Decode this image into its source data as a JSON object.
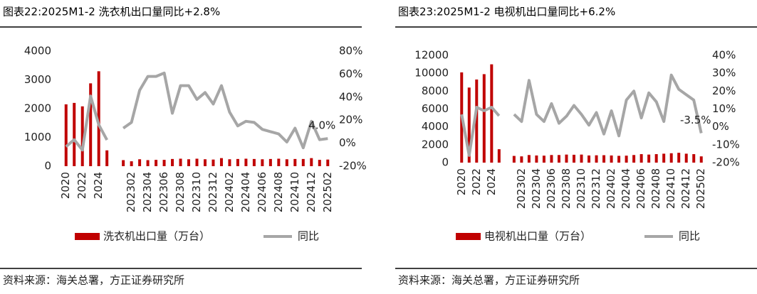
{
  "chart_data": [
    {
      "type": "combo",
      "title": "图表22:2025M1-2 洗衣机出口量同比+2.8%",
      "source": "资料来源：海关总署，方正证券研究所",
      "categories": [
        "2020",
        null,
        "2022",
        null,
        "2024",
        null,
        null,
        null,
        "202302",
        null,
        "202304",
        null,
        "202306",
        null,
        "202308",
        null,
        "202310",
        null,
        "202312",
        null,
        "202402",
        null,
        "202404",
        null,
        "202406",
        null,
        "202408",
        null,
        "202410",
        null,
        "202412",
        null,
        "202502"
      ],
      "series": [
        {
          "name": "洗衣机出口量（万台）",
          "type": "bar",
          "color": "#c00000",
          "values": [
            2150,
            2200,
            2080,
            2880,
            3300,
            550,
            null,
            210,
            170,
            240,
            210,
            220,
            220,
            250,
            260,
            240,
            260,
            240,
            230,
            280,
            240,
            250,
            260,
            250,
            240,
            250,
            260,
            240,
            250,
            250,
            280,
            220,
            230
          ]
        },
        {
          "name": "同比",
          "type": "line",
          "axis": "y2",
          "color": "#a6a6a6",
          "values": [
            -3,
            3,
            -6,
            41,
            16,
            2.8,
            null,
            13,
            18,
            46,
            58,
            58,
            61,
            26,
            50,
            50,
            38,
            44,
            34,
            50,
            27,
            15,
            19,
            18,
            12,
            10,
            8,
            1,
            13,
            -4,
            19,
            3,
            4.0
          ],
          "value_labels": [
            null,
            null,
            null,
            null,
            null,
            null,
            null,
            null,
            null,
            null,
            null,
            null,
            null,
            null,
            null,
            null,
            null,
            null,
            null,
            null,
            null,
            null,
            null,
            null,
            null,
            null,
            null,
            null,
            null,
            null,
            null,
            null,
            "4.0%"
          ]
        }
      ],
      "ylim": [
        0,
        4000
      ],
      "yticks": [
        0,
        1000,
        2000,
        3000,
        4000
      ],
      "y2lim": [
        -20,
        80
      ],
      "y2ticks": [
        {
          "value": -20,
          "label": "-20%"
        },
        {
          "value": 0,
          "label": "0%"
        },
        {
          "value": 20,
          "label": "20%"
        },
        {
          "value": 40,
          "label": "40%"
        },
        {
          "value": 60,
          "label": "60%"
        },
        {
          "value": 80,
          "label": "80%"
        }
      ],
      "legend": "bottom"
    },
    {
      "type": "combo",
      "title": "图表23:2025M1-2 电视机出口量同比+6.2%",
      "source": "资料来源：海关总署，方正证券研究所",
      "categories": [
        "2020",
        null,
        "2022",
        null,
        "2024",
        null,
        null,
        null,
        "202302",
        null,
        "202304",
        null,
        "202306",
        null,
        "202308",
        null,
        "202310",
        null,
        "202312",
        null,
        "202402",
        null,
        "202404",
        null,
        "202406",
        null,
        "202408",
        null,
        "202410",
        null,
        "202412",
        null,
        "202502"
      ],
      "series": [
        {
          "name": "电视机出口量（万台）",
          "type": "bar",
          "color": "#c00000",
          "values": [
            10100,
            8400,
            9300,
            9900,
            11000,
            1500,
            null,
            750,
            700,
            850,
            800,
            780,
            850,
            850,
            900,
            880,
            900,
            800,
            820,
            830,
            800,
            760,
            780,
            850,
            950,
            900,
            950,
            1000,
            1050,
            1100,
            1000,
            950,
            700
          ]
        },
        {
          "name": "同比",
          "type": "line",
          "axis": "y2",
          "color": "#a6a6a6",
          "values": [
            7,
            -16,
            11,
            9,
            11,
            6.2,
            null,
            7,
            3,
            26,
            7,
            3,
            13,
            2,
            6,
            12,
            7,
            1,
            8,
            -4,
            9,
            -5,
            15,
            20,
            5,
            19,
            14,
            3,
            29,
            21,
            18,
            15,
            -3.5
          ],
          "value_labels": [
            null,
            null,
            null,
            null,
            null,
            null,
            null,
            null,
            null,
            null,
            null,
            null,
            null,
            null,
            null,
            null,
            null,
            null,
            null,
            null,
            null,
            null,
            null,
            null,
            null,
            null,
            null,
            null,
            null,
            null,
            null,
            null,
            "-3.5%"
          ]
        }
      ],
      "ylim": [
        0,
        12000
      ],
      "yticks": [
        0,
        2000,
        4000,
        6000,
        8000,
        10000,
        12000
      ],
      "y2lim": [
        -20,
        40
      ],
      "y2ticks": [
        {
          "value": -20,
          "label": "-20%"
        },
        {
          "value": -10,
          "label": "-10%"
        },
        {
          "value": 0,
          "label": "0%"
        },
        {
          "value": 10,
          "label": "10%"
        },
        {
          "value": 20,
          "label": "20%"
        },
        {
          "value": 30,
          "label": "30%"
        },
        {
          "value": 40,
          "label": "40%"
        }
      ],
      "legend": "bottom"
    }
  ]
}
